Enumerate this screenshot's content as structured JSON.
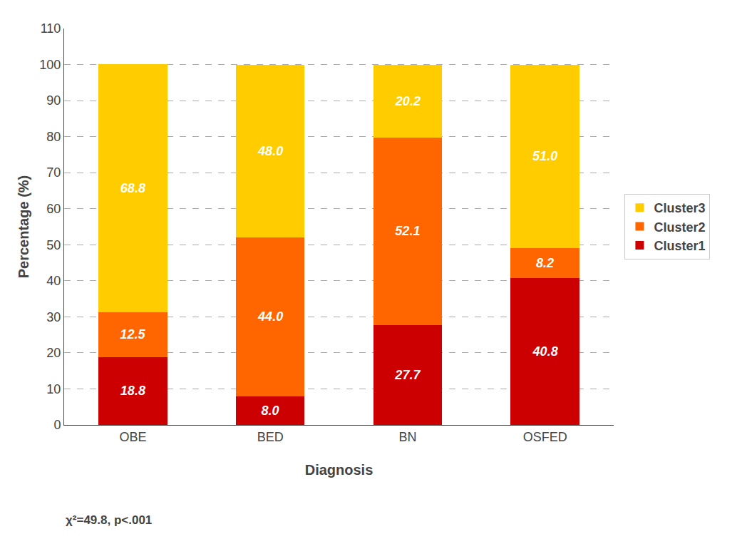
{
  "chart_data": {
    "type": "bar",
    "stacked": true,
    "categories": [
      "OBE",
      "BED",
      "BN",
      "OSFED"
    ],
    "series": [
      {
        "name": "Cluster1",
        "color": "#cc0000",
        "values": [
          18.8,
          8.0,
          27.7,
          40.8
        ],
        "value_labels": [
          "18.8",
          "8.0",
          "27.7",
          "40.8"
        ]
      },
      {
        "name": "Cluster2",
        "color": "#ff6600",
        "values": [
          12.5,
          44.0,
          52.1,
          8.2
        ],
        "value_labels": [
          "12.5",
          "44.0",
          "52.1",
          "8.2"
        ]
      },
      {
        "name": "Cluster3",
        "color": "#ffcc00",
        "values": [
          68.8,
          48.0,
          20.2,
          51.0
        ],
        "value_labels": [
          "68.8",
          "48.0",
          "20.2",
          "51.0"
        ]
      }
    ],
    "xlabel": "Diagnosis",
    "ylabel": "Percentage (%)",
    "ylim": [
      0,
      110
    ],
    "yticks": [
      0,
      10,
      20,
      30,
      40,
      50,
      60,
      70,
      80,
      90,
      100,
      110
    ],
    "grid": true,
    "legend": "right",
    "data_labels": true,
    "annotation": "χ²=49.8, p<.001"
  }
}
